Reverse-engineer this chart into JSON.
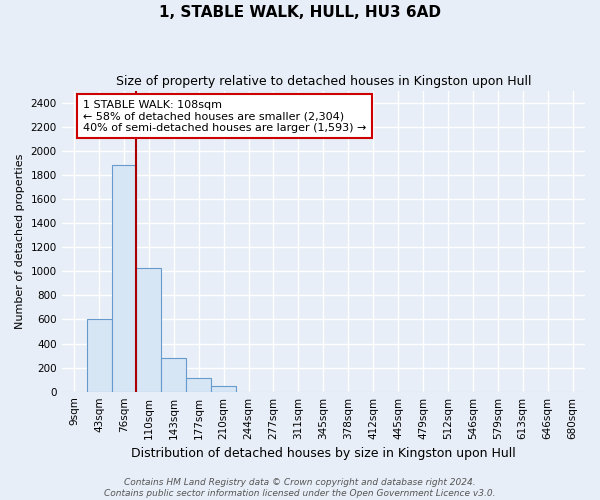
{
  "title": "1, STABLE WALK, HULL, HU3 6AD",
  "subtitle": "Size of property relative to detached houses in Kingston upon Hull",
  "xlabel": "Distribution of detached houses by size in Kingston upon Hull",
  "ylabel": "Number of detached properties",
  "bar_categories": [
    "9sqm",
    "43sqm",
    "76sqm",
    "110sqm",
    "143sqm",
    "177sqm",
    "210sqm",
    "244sqm",
    "277sqm",
    "311sqm",
    "345sqm",
    "378sqm",
    "412sqm",
    "445sqm",
    "479sqm",
    "512sqm",
    "546sqm",
    "579sqm",
    "613sqm",
    "646sqm",
    "680sqm"
  ],
  "bar_values": [
    0,
    600,
    1880,
    1030,
    280,
    115,
    50,
    0,
    0,
    0,
    0,
    0,
    0,
    0,
    0,
    0,
    0,
    0,
    0,
    0,
    0
  ],
  "bar_color": "#d6e6f5",
  "bar_edge_color": "#6699cc",
  "vline_x_index": 2.5,
  "vline_color": "#aa0000",
  "annotation_text": "1 STABLE WALK: 108sqm\n← 58% of detached houses are smaller (2,304)\n40% of semi-detached houses are larger (1,593) →",
  "annotation_box_color": "#ffffff",
  "annotation_box_edge": "#cc0000",
  "ylim": [
    0,
    2500
  ],
  "yticks": [
    0,
    200,
    400,
    600,
    800,
    1000,
    1200,
    1400,
    1600,
    1800,
    2000,
    2200,
    2400
  ],
  "footer": "Contains HM Land Registry data © Crown copyright and database right 2024.\nContains public sector information licensed under the Open Government Licence v3.0.",
  "bg_color": "#e8eef7",
  "grid_color": "#ffffff",
  "title_fontsize": 11,
  "subtitle_fontsize": 9,
  "xlabel_fontsize": 9,
  "ylabel_fontsize": 8,
  "tick_fontsize": 7.5,
  "annotation_fontsize": 8,
  "footer_fontsize": 6.5
}
